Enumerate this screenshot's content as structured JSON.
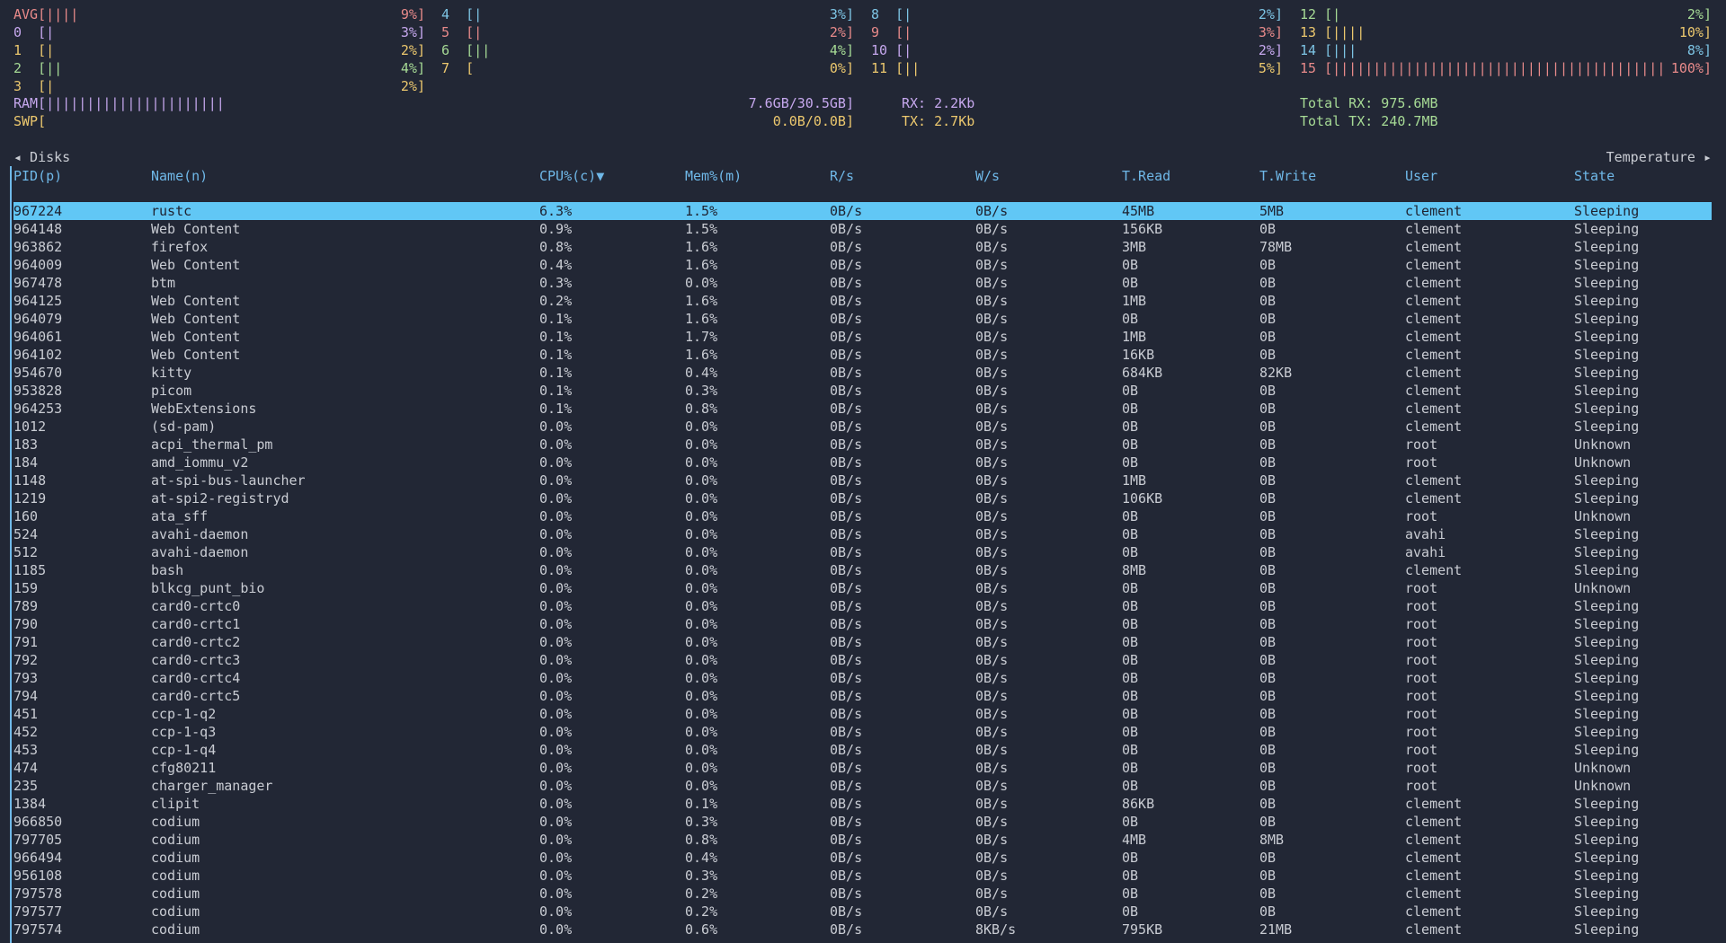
{
  "cpu": [
    {
      "label": "AVG",
      "bar": "[||||",
      "value": "9%]",
      "color": "#e88a8a"
    },
    {
      "label": "0",
      "bar": "[|",
      "value": "3%]",
      "color": "#c6a8ee"
    },
    {
      "label": "1",
      "bar": "[|",
      "value": "2%]",
      "color": "#ecc86e"
    },
    {
      "label": "2",
      "bar": "[||",
      "value": "4%]",
      "color": "#a6da95"
    },
    {
      "label": "3",
      "bar": "[|",
      "value": "2%]",
      "color": "#ecc86e"
    },
    {
      "label": "4",
      "bar": "[|",
      "value": "3%]",
      "color": "#7dc4e4"
    },
    {
      "label": "5",
      "bar": "[|",
      "value": "2%]",
      "color": "#e88a8a"
    },
    {
      "label": "6",
      "bar": "[||",
      "value": "4%]",
      "color": "#a6da95"
    },
    {
      "label": "7",
      "bar": "[",
      "value": "0%]",
      "color": "#ecc86e"
    },
    {
      "label": "8",
      "bar": "[|",
      "value": "2%]",
      "color": "#7dc4e4"
    },
    {
      "label": "9",
      "bar": "[|",
      "value": "3%]",
      "color": "#e88a8a"
    },
    {
      "label": "10",
      "bar": "[|",
      "value": "2%]",
      "color": "#c6a8ee"
    },
    {
      "label": "11",
      "bar": "[||",
      "value": "5%]",
      "color": "#ecc86e"
    },
    {
      "label": "12",
      "bar": "[|",
      "value": "2%]",
      "color": "#a6da95"
    },
    {
      "label": "13",
      "bar": "[||||",
      "value": "10%]",
      "color": "#ecc86e"
    },
    {
      "label": "14",
      "bar": "[|||",
      "value": "8%]",
      "color": "#7dc4e4"
    },
    {
      "label": "15",
      "bar": "[|||||||||||||||||||||||||||||||||||||||||",
      "value": "100%]",
      "color": "#e88a8a"
    }
  ],
  "memory": [
    {
      "label": "RAM",
      "bar": "[||||||||||||||||||||||",
      "value": "7.6GB/30.5GB]",
      "color": "#c6a8ee"
    },
    {
      "label": "SWP",
      "bar": "[",
      "value": "0.0B/0.0B]",
      "color": "#ecc86e"
    }
  ],
  "network": {
    "rx": "RX: 2.2Kb",
    "tx": "TX: 2.7Kb",
    "total_rx": "Total RX: 975.6MB",
    "total_tx": "Total TX: 240.7MB"
  },
  "table": {
    "left_tab": "◂ Disks",
    "right_tab": "Temperature ▸",
    "headers": [
      "PID(p)",
      "Name(n)",
      "CPU%(c)▼",
      "Mem%(m)",
      "R/s",
      "W/s",
      "T.Read",
      "T.Write",
      "User",
      "State"
    ],
    "selected": 0,
    "rows": [
      [
        "967224",
        "rustc",
        "6.3%",
        "1.5%",
        "0B/s",
        "0B/s",
        "45MB",
        "5MB",
        "clement",
        "Sleeping"
      ],
      [
        "964148",
        "Web Content",
        "0.9%",
        "1.5%",
        "0B/s",
        "0B/s",
        "156KB",
        "0B",
        "clement",
        "Sleeping"
      ],
      [
        "963862",
        "firefox",
        "0.8%",
        "1.6%",
        "0B/s",
        "0B/s",
        "3MB",
        "78MB",
        "clement",
        "Sleeping"
      ],
      [
        "964009",
        "Web Content",
        "0.4%",
        "1.6%",
        "0B/s",
        "0B/s",
        "0B",
        "0B",
        "clement",
        "Sleeping"
      ],
      [
        "967478",
        "btm",
        "0.3%",
        "0.0%",
        "0B/s",
        "0B/s",
        "0B",
        "0B",
        "clement",
        "Sleeping"
      ],
      [
        "964125",
        "Web Content",
        "0.2%",
        "1.6%",
        "0B/s",
        "0B/s",
        "1MB",
        "0B",
        "clement",
        "Sleeping"
      ],
      [
        "964079",
        "Web Content",
        "0.1%",
        "1.6%",
        "0B/s",
        "0B/s",
        "0B",
        "0B",
        "clement",
        "Sleeping"
      ],
      [
        "964061",
        "Web Content",
        "0.1%",
        "1.7%",
        "0B/s",
        "0B/s",
        "1MB",
        "0B",
        "clement",
        "Sleeping"
      ],
      [
        "964102",
        "Web Content",
        "0.1%",
        "1.6%",
        "0B/s",
        "0B/s",
        "16KB",
        "0B",
        "clement",
        "Sleeping"
      ],
      [
        "954670",
        "kitty",
        "0.1%",
        "0.4%",
        "0B/s",
        "0B/s",
        "684KB",
        "82KB",
        "clement",
        "Sleeping"
      ],
      [
        "953828",
        "picom",
        "0.1%",
        "0.3%",
        "0B/s",
        "0B/s",
        "0B",
        "0B",
        "clement",
        "Sleeping"
      ],
      [
        "964253",
        "WebExtensions",
        "0.1%",
        "0.8%",
        "0B/s",
        "0B/s",
        "0B",
        "0B",
        "clement",
        "Sleeping"
      ],
      [
        "1012",
        "(sd-pam)",
        "0.0%",
        "0.0%",
        "0B/s",
        "0B/s",
        "0B",
        "0B",
        "clement",
        "Sleeping"
      ],
      [
        "183",
        "acpi_thermal_pm",
        "0.0%",
        "0.0%",
        "0B/s",
        "0B/s",
        "0B",
        "0B",
        "root",
        "Unknown"
      ],
      [
        "184",
        "amd_iommu_v2",
        "0.0%",
        "0.0%",
        "0B/s",
        "0B/s",
        "0B",
        "0B",
        "root",
        "Unknown"
      ],
      [
        "1148",
        "at-spi-bus-launcher",
        "0.0%",
        "0.0%",
        "0B/s",
        "0B/s",
        "1MB",
        "0B",
        "clement",
        "Sleeping"
      ],
      [
        "1219",
        "at-spi2-registryd",
        "0.0%",
        "0.0%",
        "0B/s",
        "0B/s",
        "106KB",
        "0B",
        "clement",
        "Sleeping"
      ],
      [
        "160",
        "ata_sff",
        "0.0%",
        "0.0%",
        "0B/s",
        "0B/s",
        "0B",
        "0B",
        "root",
        "Unknown"
      ],
      [
        "524",
        "avahi-daemon",
        "0.0%",
        "0.0%",
        "0B/s",
        "0B/s",
        "0B",
        "0B",
        "avahi",
        "Sleeping"
      ],
      [
        "512",
        "avahi-daemon",
        "0.0%",
        "0.0%",
        "0B/s",
        "0B/s",
        "0B",
        "0B",
        "avahi",
        "Sleeping"
      ],
      [
        "1185",
        "bash",
        "0.0%",
        "0.0%",
        "0B/s",
        "0B/s",
        "8MB",
        "0B",
        "clement",
        "Sleeping"
      ],
      [
        "159",
        "blkcg_punt_bio",
        "0.0%",
        "0.0%",
        "0B/s",
        "0B/s",
        "0B",
        "0B",
        "root",
        "Unknown"
      ],
      [
        "789",
        "card0-crtc0",
        "0.0%",
        "0.0%",
        "0B/s",
        "0B/s",
        "0B",
        "0B",
        "root",
        "Sleeping"
      ],
      [
        "790",
        "card0-crtc1",
        "0.0%",
        "0.0%",
        "0B/s",
        "0B/s",
        "0B",
        "0B",
        "root",
        "Sleeping"
      ],
      [
        "791",
        "card0-crtc2",
        "0.0%",
        "0.0%",
        "0B/s",
        "0B/s",
        "0B",
        "0B",
        "root",
        "Sleeping"
      ],
      [
        "792",
        "card0-crtc3",
        "0.0%",
        "0.0%",
        "0B/s",
        "0B/s",
        "0B",
        "0B",
        "root",
        "Sleeping"
      ],
      [
        "793",
        "card0-crtc4",
        "0.0%",
        "0.0%",
        "0B/s",
        "0B/s",
        "0B",
        "0B",
        "root",
        "Sleeping"
      ],
      [
        "794",
        "card0-crtc5",
        "0.0%",
        "0.0%",
        "0B/s",
        "0B/s",
        "0B",
        "0B",
        "root",
        "Sleeping"
      ],
      [
        "451",
        "ccp-1-q2",
        "0.0%",
        "0.0%",
        "0B/s",
        "0B/s",
        "0B",
        "0B",
        "root",
        "Sleeping"
      ],
      [
        "452",
        "ccp-1-q3",
        "0.0%",
        "0.0%",
        "0B/s",
        "0B/s",
        "0B",
        "0B",
        "root",
        "Sleeping"
      ],
      [
        "453",
        "ccp-1-q4",
        "0.0%",
        "0.0%",
        "0B/s",
        "0B/s",
        "0B",
        "0B",
        "root",
        "Sleeping"
      ],
      [
        "474",
        "cfg80211",
        "0.0%",
        "0.0%",
        "0B/s",
        "0B/s",
        "0B",
        "0B",
        "root",
        "Unknown"
      ],
      [
        "235",
        "charger_manager",
        "0.0%",
        "0.0%",
        "0B/s",
        "0B/s",
        "0B",
        "0B",
        "root",
        "Unknown"
      ],
      [
        "1384",
        "clipit",
        "0.0%",
        "0.1%",
        "0B/s",
        "0B/s",
        "86KB",
        "0B",
        "clement",
        "Sleeping"
      ],
      [
        "966850",
        "codium",
        "0.0%",
        "0.3%",
        "0B/s",
        "0B/s",
        "0B",
        "0B",
        "clement",
        "Sleeping"
      ],
      [
        "797705",
        "codium",
        "0.0%",
        "0.8%",
        "0B/s",
        "0B/s",
        "4MB",
        "8MB",
        "clement",
        "Sleeping"
      ],
      [
        "966494",
        "codium",
        "0.0%",
        "0.4%",
        "0B/s",
        "0B/s",
        "0B",
        "0B",
        "clement",
        "Sleeping"
      ],
      [
        "956108",
        "codium",
        "0.0%",
        "0.3%",
        "0B/s",
        "0B/s",
        "0B",
        "0B",
        "clement",
        "Sleeping"
      ],
      [
        "797578",
        "codium",
        "0.0%",
        "0.2%",
        "0B/s",
        "0B/s",
        "0B",
        "0B",
        "clement",
        "Sleeping"
      ],
      [
        "797577",
        "codium",
        "0.0%",
        "0.2%",
        "0B/s",
        "0B/s",
        "0B",
        "0B",
        "clement",
        "Sleeping"
      ],
      [
        "797574",
        "codium",
        "0.0%",
        "0.6%",
        "0B/s",
        "8KB/s",
        "795KB",
        "21MB",
        "clement",
        "Sleeping"
      ]
    ]
  }
}
